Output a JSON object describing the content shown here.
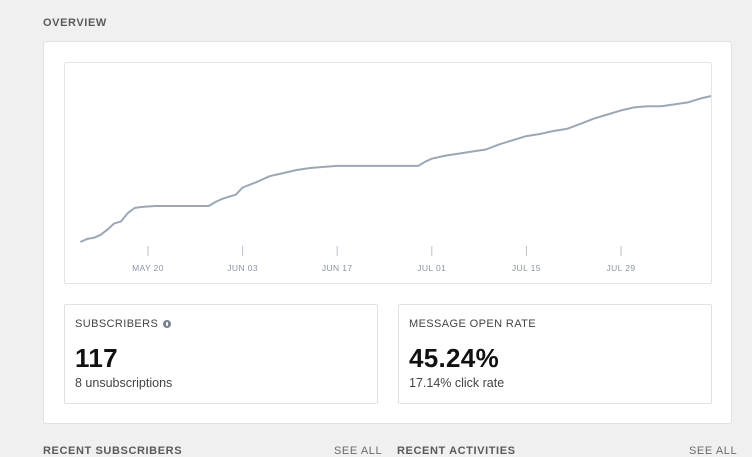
{
  "overview": {
    "title": "OVERVIEW"
  },
  "chart_data": {
    "type": "line",
    "title": "",
    "xlabel": "",
    "ylabel": "",
    "x_ticks": [
      "MAY 20",
      "JUN 03",
      "JUN 17",
      "JUL 01",
      "JUL 15",
      "JUL 29"
    ],
    "grid": false,
    "series": [
      {
        "color": "#9aa8b6",
        "points": [
          [
            "May 10",
            2
          ],
          [
            "May 11",
            5
          ],
          [
            "May 12",
            6
          ],
          [
            "May 13",
            9
          ],
          [
            "May 14",
            14
          ],
          [
            "May 15",
            20
          ],
          [
            "May 16",
            22
          ],
          [
            "May 17",
            30
          ],
          [
            "May 18",
            35
          ],
          [
            "May 19",
            36
          ],
          [
            "May 21",
            37
          ],
          [
            "May 25",
            37
          ],
          [
            "May 27",
            37
          ],
          [
            "May 29",
            37
          ],
          [
            "May 30",
            41
          ],
          [
            "May 31",
            44
          ],
          [
            "Jun 01",
            46
          ],
          [
            "Jun 02",
            48
          ],
          [
            "Jun 03",
            55
          ],
          [
            "Jun 05",
            60
          ],
          [
            "Jun 07",
            66
          ],
          [
            "Jun 09",
            69
          ],
          [
            "Jun 11",
            72
          ],
          [
            "Jun 13",
            74
          ],
          [
            "Jun 15",
            75
          ],
          [
            "Jun 17",
            76
          ],
          [
            "Jun 23",
            76
          ],
          [
            "Jun 29",
            76
          ],
          [
            "Jun 30",
            80
          ],
          [
            "Jul 01",
            83
          ],
          [
            "Jul 03",
            86
          ],
          [
            "Jul 05",
            88
          ],
          [
            "Jul 07",
            90
          ],
          [
            "Jul 09",
            92
          ],
          [
            "Jul 11",
            97
          ],
          [
            "Jul 13",
            101
          ],
          [
            "Jul 15",
            105
          ],
          [
            "Jul 17",
            107
          ],
          [
            "Jul 19",
            110
          ],
          [
            "Jul 21",
            112
          ],
          [
            "Jul 23",
            117
          ],
          [
            "Jul 25",
            122
          ],
          [
            "Jul 27",
            126
          ],
          [
            "Jul 29",
            130
          ],
          [
            "Jul 31",
            133
          ],
          [
            "Aug 02",
            134
          ],
          [
            "Aug 04",
            134
          ],
          [
            "Aug 06",
            136
          ],
          [
            "Aug 08",
            138
          ],
          [
            "Aug 10",
            142
          ],
          [
            "Aug 12",
            145
          ]
        ]
      }
    ]
  },
  "stats": {
    "subscribers": {
      "label": "SUBSCRIBERS",
      "value": "117",
      "sub": "8 unsubscriptions",
      "info_icon": "info-icon"
    },
    "open_rate": {
      "label": "MESSAGE OPEN RATE",
      "value": "45.24%",
      "sub": "17.14% click rate"
    }
  },
  "sections": {
    "recent_subscribers": {
      "title": "RECENT SUBSCRIBERS",
      "see_all": "SEE ALL"
    },
    "recent_activities": {
      "title": "RECENT ACTIVITIES",
      "see_all": "SEE ALL"
    }
  },
  "colors": {
    "line": "#9aa8b6",
    "tick": "#b9c1ca",
    "tick_label": "#8a96a3"
  }
}
